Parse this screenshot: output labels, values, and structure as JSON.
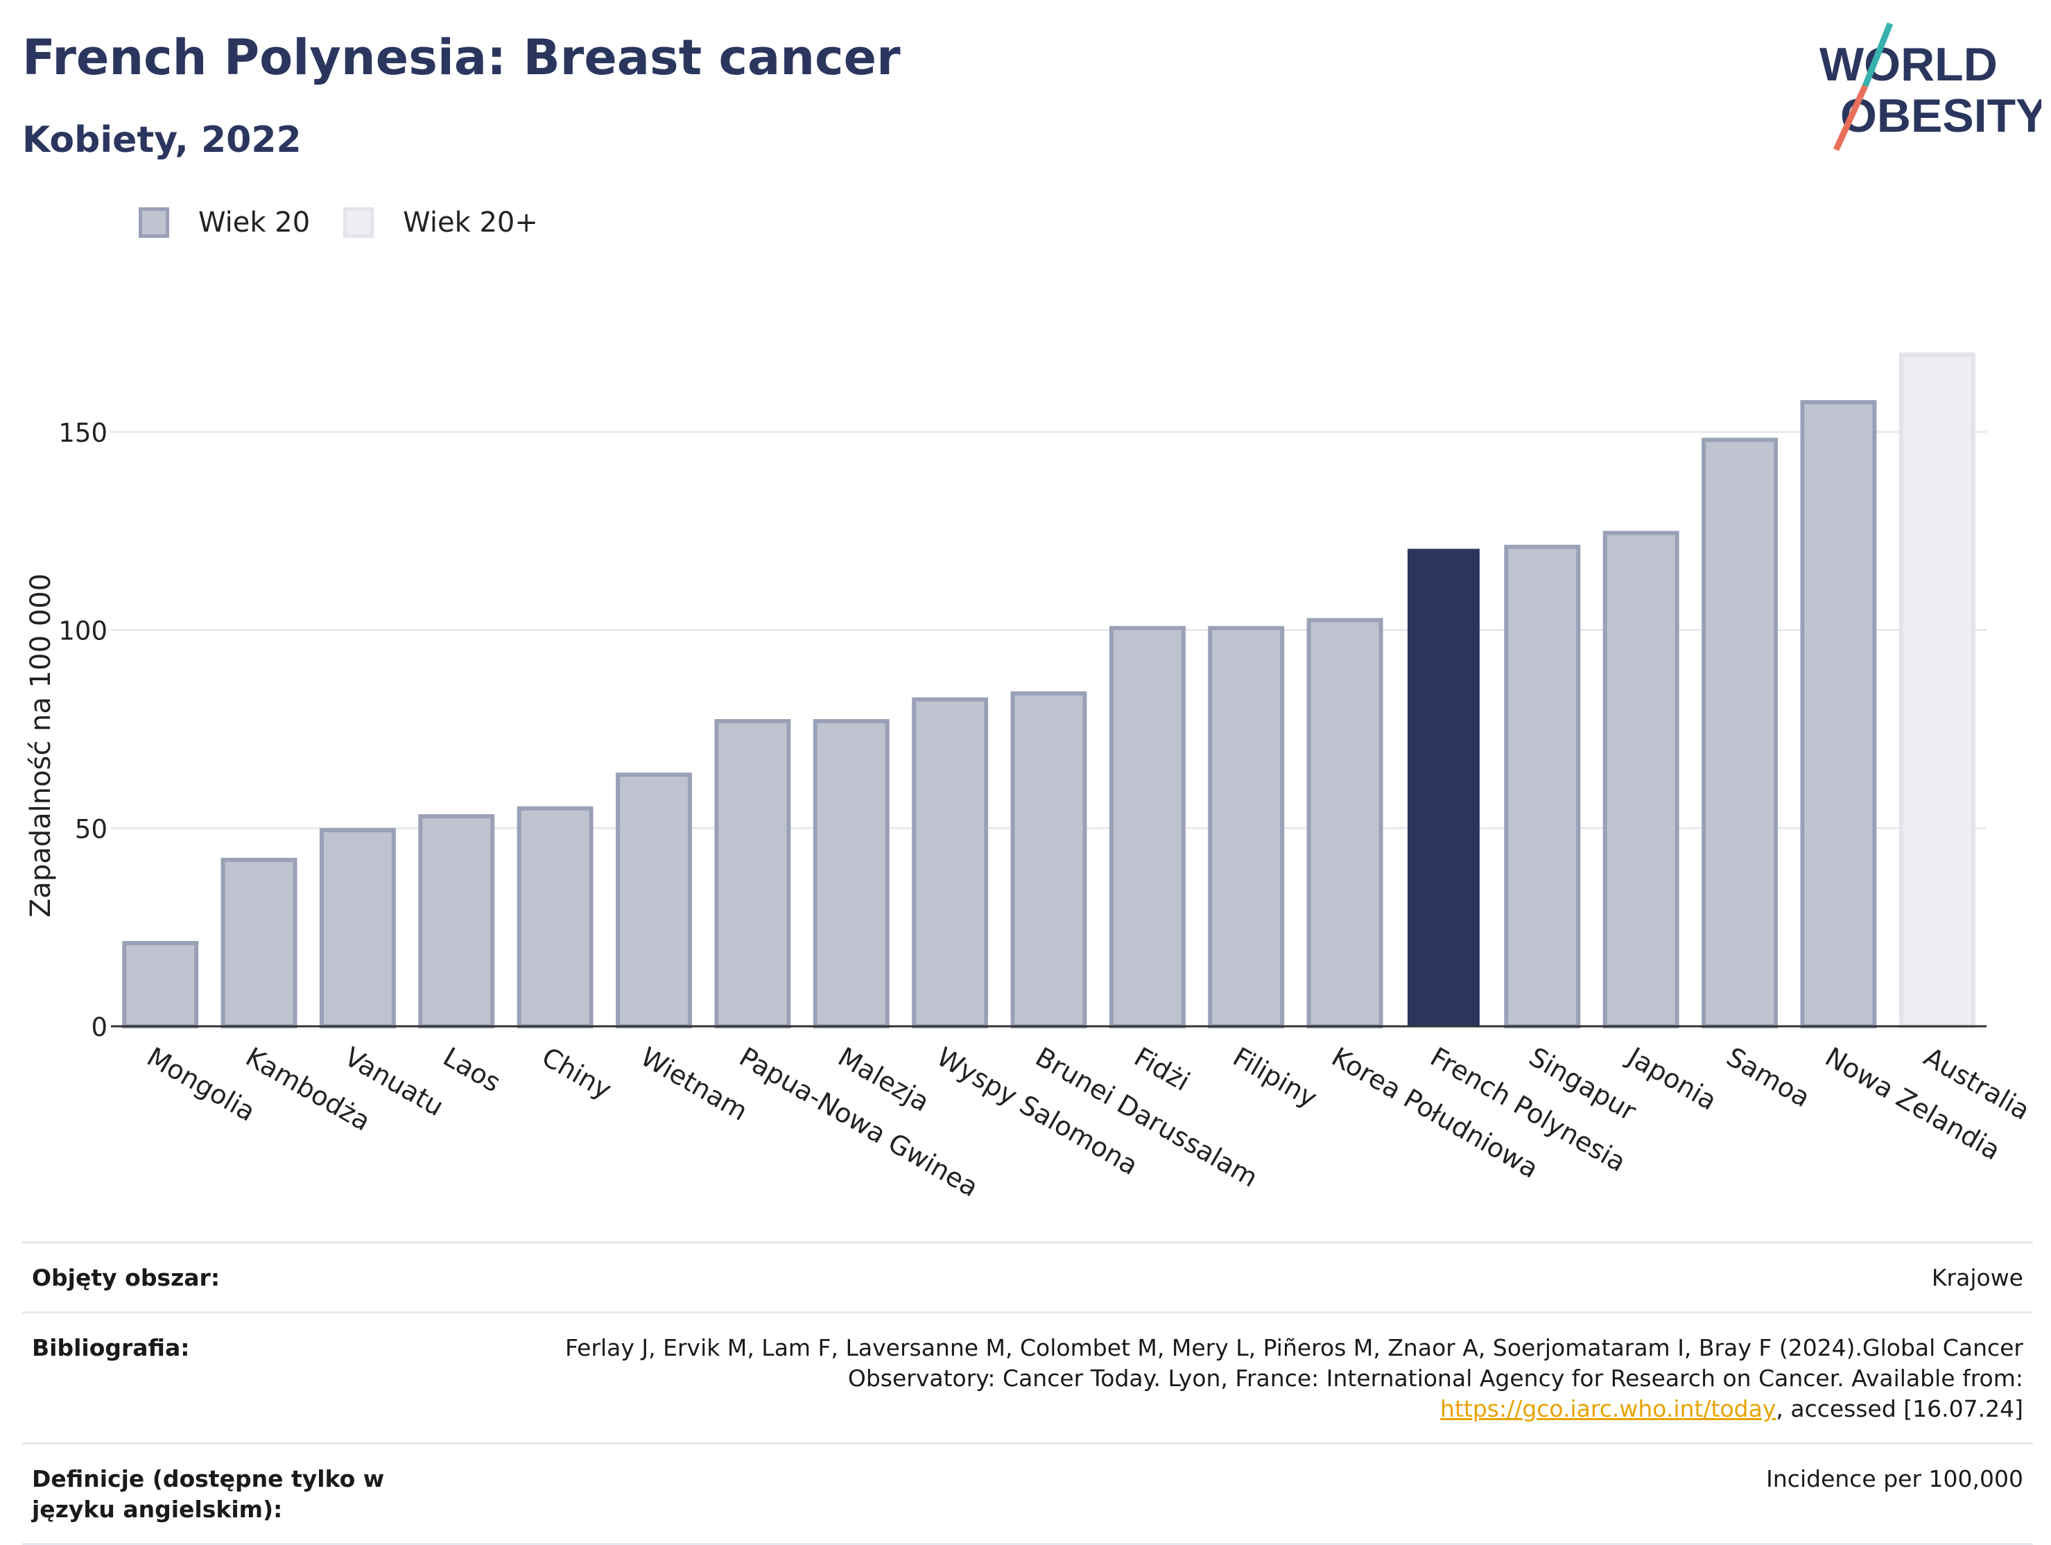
{
  "header": {
    "title": "French Polynesia: Breast cancer",
    "subtitle": "Kobiety, 2022"
  },
  "logo": {
    "line1": "WORLD",
    "line2": "OBESITY",
    "colors": {
      "text": "#2b365f",
      "slash_top": "#38b2ac",
      "slash_bottom": "#e8705a"
    }
  },
  "legend": [
    {
      "label": "Wiek 20",
      "color": "#bec3cf"
    },
    {
      "label": "Wiek 20+",
      "color": "#eceef2"
    }
  ],
  "chart_data": {
    "type": "bar",
    "ylabel": "Zapadalność na 100 000",
    "xlabel": "",
    "ylim": [
      0,
      175
    ],
    "yticks": [
      0,
      50,
      100,
      150
    ],
    "grid": true,
    "legend_position": "top-left",
    "categories": [
      "Mongolia",
      "Kambodża",
      "Vanuatu",
      "Laos",
      "Chiny",
      "Wietnam",
      "Papua-Nowa Gwinea",
      "Malezja",
      "Wyspy Salomona",
      "Brunei Darussalam",
      "Fidżi",
      "Filipiny",
      "Korea Południowa",
      "French Polynesia",
      "Singapur",
      "Japonia",
      "Samoa",
      "Nowa Zelandia",
      "Australia"
    ],
    "values": [
      21,
      42,
      49.5,
      53,
      55,
      63.5,
      77,
      77,
      82.5,
      84,
      100.5,
      100.5,
      102.5,
      120.5,
      121,
      124.5,
      148,
      157.5,
      169.5
    ],
    "series_of_bar": [
      "Wiek 20",
      "Wiek 20",
      "Wiek 20",
      "Wiek 20",
      "Wiek 20",
      "Wiek 20",
      "Wiek 20",
      "Wiek 20",
      "Wiek 20",
      "Wiek 20",
      "Wiek 20",
      "Wiek 20",
      "Wiek 20",
      "Wiek 20",
      "Wiek 20",
      "Wiek 20",
      "Wiek 20",
      "Wiek 20",
      "Wiek 20+"
    ],
    "highlight": "French Polynesia",
    "colors": {
      "default": "#bec3cf",
      "default_border": "#9aa1b6",
      "highlight": "#2b365f",
      "age20plus": "#eceef2",
      "age20plus_border": "#e2e4ea",
      "grid": "#e8e9ee",
      "axis": "#333333"
    }
  },
  "meta": {
    "coverage_label": "Objęty obszar:",
    "coverage_value": "Krajowe",
    "bibliography_label": "Bibliografia:",
    "bibliography_text1": "Ferlay J, Ervik M, Lam F, Laversanne M, Colombet M, Mery L, Piñeros M, Znaor A, Soerjomataram I, Bray F (2024).Global Cancer Observatory: Cancer Today. Lyon, France: International Agency for Research on Cancer. Available from: ",
    "bibliography_link": "https://gco.iarc.who.int/today",
    "bibliography_text2": ", accessed [16.07.24]",
    "definitions_label": "Definicje (dostępne tylko w języku angielskim):",
    "definitions_value": "Incidence per 100,000"
  }
}
